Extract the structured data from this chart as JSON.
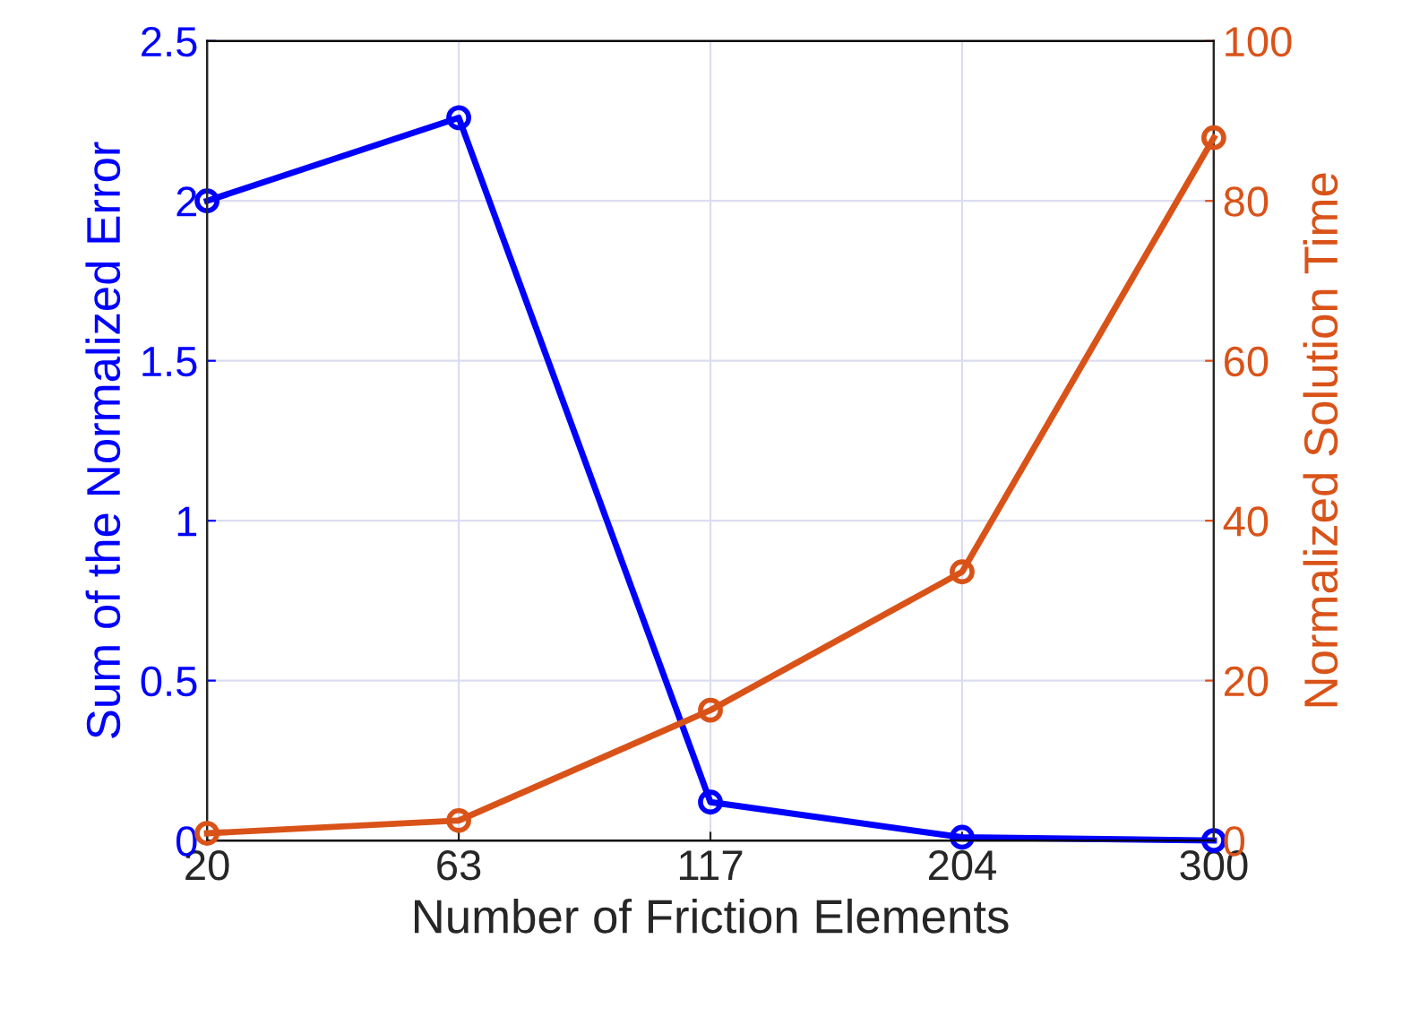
{
  "chart_data": {
    "type": "line",
    "xlabel": "Number of Friction Elements",
    "ylabel": "Sum of the Normalized Error",
    "y2label": "Normalized Solution Time",
    "categories": [
      "20",
      "63",
      "117",
      "204",
      "300"
    ],
    "series": [
      {
        "color": "#0000ff",
        "values": [
          2.0,
          2.26,
          0.12,
          0.01,
          0.0
        ]
      },
      {
        "color": "#d95319",
        "axis": "y2",
        "values": [
          0.9,
          2.5,
          16.3,
          33.6,
          87.9
        ]
      }
    ],
    "ylim": [
      0,
      2.5
    ],
    "yticks": [
      0,
      0.5,
      1,
      1.5,
      2,
      2.5
    ],
    "y2lim": [
      0,
      100
    ],
    "y2ticks": [
      0,
      20,
      40,
      60,
      80,
      100
    ],
    "grid": true,
    "marker": "circle",
    "line_style": "solid"
  }
}
